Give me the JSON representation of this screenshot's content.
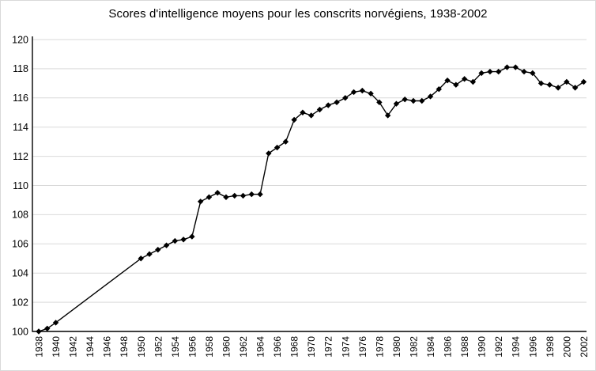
{
  "chart": {
    "title": "Scores d'intelligence moyens pour les conscrits norvégiens, 1938-2002"
  },
  "chart_data": {
    "type": "line",
    "title": "Scores d'intelligence moyens pour les conscrits norvégiens, 1938-2002",
    "xlabel": "",
    "ylabel": "",
    "ylim": [
      100,
      120
    ],
    "ytick_step": 2,
    "xticks": [
      1938,
      1940,
      1942,
      1944,
      1946,
      1948,
      1950,
      1952,
      1954,
      1956,
      1958,
      1960,
      1962,
      1964,
      1966,
      1968,
      1970,
      1972,
      1974,
      1976,
      1978,
      1980,
      1982,
      1984,
      1986,
      1988,
      1990,
      1992,
      1994,
      1996,
      1998,
      2000,
      2002
    ],
    "grid": "horizontal",
    "legend_position": "none",
    "marker": "diamond",
    "note_gap": "no data between 1941 and 1949; line drawn straight from 1940 to 1950",
    "x": [
      1938,
      1939,
      1940,
      1950,
      1951,
      1952,
      1953,
      1954,
      1955,
      1956,
      1957,
      1958,
      1959,
      1960,
      1961,
      1962,
      1963,
      1964,
      1965,
      1966,
      1967,
      1968,
      1969,
      1970,
      1971,
      1972,
      1973,
      1974,
      1975,
      1976,
      1977,
      1978,
      1979,
      1980,
      1981,
      1982,
      1983,
      1984,
      1985,
      1986,
      1987,
      1988,
      1989,
      1990,
      1991,
      1992,
      1993,
      1994,
      1995,
      1996,
      1997,
      1998,
      1999,
      2000,
      2001,
      2002
    ],
    "values": [
      100.0,
      100.2,
      100.6,
      105.0,
      105.3,
      105.6,
      105.9,
      106.2,
      106.3,
      106.5,
      108.9,
      109.2,
      109.5,
      109.2,
      109.3,
      109.3,
      109.4,
      109.4,
      112.2,
      112.6,
      113.0,
      114.5,
      115.0,
      114.8,
      115.2,
      115.5,
      115.7,
      116.0,
      116.4,
      116.5,
      116.3,
      115.7,
      114.8,
      115.6,
      115.9,
      115.8,
      115.8,
      116.1,
      116.6,
      117.2,
      116.9,
      117.3,
      117.1,
      117.7,
      117.8,
      117.8,
      118.1,
      118.1,
      117.8,
      117.7,
      117.0,
      116.9,
      116.7,
      117.1,
      116.7,
      117.1
    ],
    "colors": {
      "line": "#000000",
      "marker": "#000000",
      "grid": "#d9d9d9",
      "axis": "#000000",
      "text": "#000000"
    }
  }
}
